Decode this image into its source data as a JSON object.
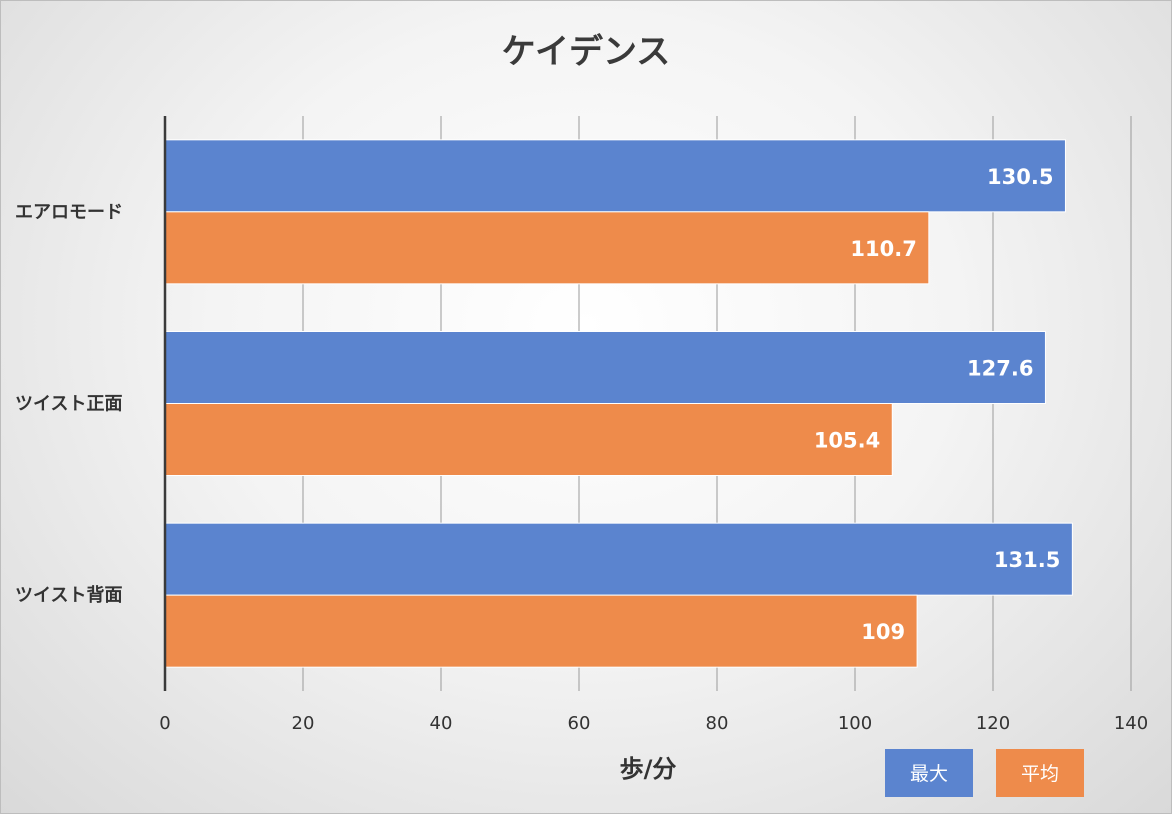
{
  "chart_data": {
    "type": "bar",
    "orientation": "horizontal",
    "title": "ケイデンス",
    "xlabel": "歩/分",
    "ylabel": "",
    "categories": [
      "エアロモード",
      "ツイスト正面",
      "ツイスト背面"
    ],
    "series": [
      {
        "name": "最大",
        "color": "#5b84cf",
        "values": [
          130.5,
          127.6,
          131.5
        ]
      },
      {
        "name": "平均",
        "color": "#ee8b4b",
        "values": [
          110.7,
          105.4,
          109
        ]
      }
    ],
    "data_labels": [
      [
        "130.5",
        "127.6",
        "131.5"
      ],
      [
        "110.7",
        "105.4",
        "109"
      ]
    ],
    "xlim": [
      0,
      140
    ],
    "x_ticks": [
      0,
      20,
      40,
      60,
      80,
      100,
      120,
      140
    ],
    "grid": true,
    "legend_position": "bottom-right"
  }
}
